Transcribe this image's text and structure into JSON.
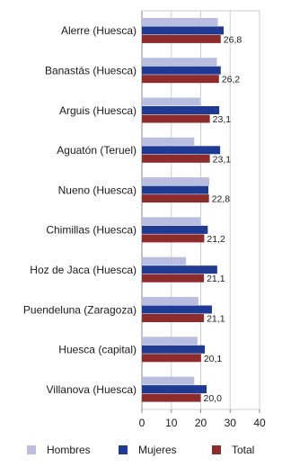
{
  "chart_data": {
    "type": "bar",
    "orientation": "horizontal",
    "categories": [
      "Alerre (Huesca)",
      "Banastás (Huesca)",
      "Arguis (Huesca)",
      "Aguatón (Teruel)",
      "Nueno (Huesca)",
      "Chimillas (Huesca)",
      "Hoz de Jaca (Huesca)",
      "Puendeluna (Zaragoza)",
      "Huesca (capital)",
      "Villanova (Huesca)"
    ],
    "series": [
      {
        "name": "Hombres",
        "color": "#b9bde0",
        "values": [
          25.8,
          25.5,
          19.8,
          17.8,
          22.9,
          19.9,
          15.0,
          19.2,
          18.9,
          17.8
        ]
      },
      {
        "name": "Mujeres",
        "color": "#1f3a93",
        "values": [
          27.8,
          26.8,
          26.3,
          26.6,
          22.6,
          22.4,
          25.6,
          23.8,
          21.4,
          22.0
        ]
      },
      {
        "name": "Total",
        "color": "#8e2c2c",
        "values": [
          26.8,
          26.2,
          23.1,
          23.1,
          22.8,
          21.2,
          21.1,
          21.1,
          20.1,
          20.0
        ]
      }
    ],
    "data_labels": [
      "26,8",
      "26,2",
      "23,1",
      "23,1",
      "22,8",
      "21,2",
      "21,1",
      "21,1",
      "20,1",
      "20,0"
    ],
    "x_ticks": [
      "0",
      "10",
      "20",
      "30",
      "40"
    ],
    "xlim": [
      0,
      40
    ],
    "grid": true,
    "legend": "bottom",
    "title": "",
    "xlabel": "",
    "ylabel": ""
  }
}
